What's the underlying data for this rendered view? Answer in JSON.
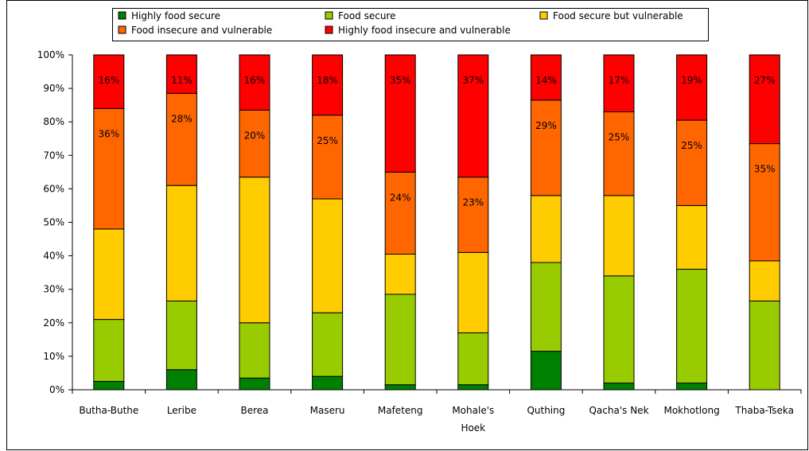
{
  "chart_data": {
    "type": "bar",
    "stacked": true,
    "percent_stacked": true,
    "categories": [
      [
        "Butha-Buthe"
      ],
      [
        "Leribe"
      ],
      [
        "Berea"
      ],
      [
        "Maseru"
      ],
      [
        "Mafeteng"
      ],
      [
        "Mohale's",
        "Hoek"
      ],
      [
        "Quthing"
      ],
      [
        "Qacha's Nek"
      ],
      [
        "Mokhotlong"
      ],
      [
        "Thaba-Tseka"
      ]
    ],
    "series": [
      {
        "name": "Highly food secure",
        "color": "#008000",
        "values": [
          2.5,
          6,
          3.5,
          4,
          1.5,
          1.5,
          11.5,
          2,
          2,
          0
        ]
      },
      {
        "name": "Food secure",
        "color": "#99CC00",
        "values": [
          18.5,
          20.5,
          16.5,
          19,
          27,
          15.5,
          26.5,
          32,
          34,
          26.5
        ]
      },
      {
        "name": "Food secure but vulnerable",
        "color": "#FFCC00",
        "values": [
          27,
          34.5,
          43.5,
          34,
          12,
          24,
          20,
          24,
          19,
          12
        ]
      },
      {
        "name": "Food insecure and vulnerable",
        "color": "#FF6600",
        "values": [
          36,
          27.5,
          20,
          25,
          24.5,
          22.5,
          28.5,
          25,
          25.5,
          35
        ]
      },
      {
        "name": "Highly food insecure and vulnerable",
        "color": "#FF0000",
        "values": [
          16,
          11.5,
          16.5,
          18,
          35,
          36.5,
          13.5,
          17,
          19.5,
          26.5
        ]
      }
    ],
    "data_labels": [
      {
        "category": 0,
        "series": 4,
        "text": "16%"
      },
      {
        "category": 0,
        "series": 3,
        "text": "36%"
      },
      {
        "category": 1,
        "series": 4,
        "text": "11%"
      },
      {
        "category": 1,
        "series": 3,
        "text": "28%"
      },
      {
        "category": 2,
        "series": 4,
        "text": "16%"
      },
      {
        "category": 2,
        "series": 3,
        "text": "20%"
      },
      {
        "category": 3,
        "series": 4,
        "text": "18%"
      },
      {
        "category": 3,
        "series": 3,
        "text": "25%"
      },
      {
        "category": 4,
        "series": 4,
        "text": "35%"
      },
      {
        "category": 4,
        "series": 3,
        "text": "24%"
      },
      {
        "category": 5,
        "series": 4,
        "text": "37%"
      },
      {
        "category": 5,
        "series": 3,
        "text": "23%"
      },
      {
        "category": 6,
        "series": 4,
        "text": "14%"
      },
      {
        "category": 6,
        "series": 3,
        "text": "29%"
      },
      {
        "category": 7,
        "series": 4,
        "text": "17%"
      },
      {
        "category": 7,
        "series": 3,
        "text": "25%"
      },
      {
        "category": 8,
        "series": 4,
        "text": "19%"
      },
      {
        "category": 8,
        "series": 3,
        "text": "25%"
      },
      {
        "category": 9,
        "series": 4,
        "text": "27%"
      },
      {
        "category": 9,
        "series": 3,
        "text": "35%"
      }
    ],
    "y_ticks": [
      "0%",
      "10%",
      "20%",
      "30%",
      "40%",
      "50%",
      "60%",
      "70%",
      "80%",
      "90%",
      "100%"
    ],
    "ylim": [
      0,
      100
    ],
    "title": "",
    "xlabel": "",
    "ylabel": "",
    "grid": false,
    "legend_position": "top"
  }
}
